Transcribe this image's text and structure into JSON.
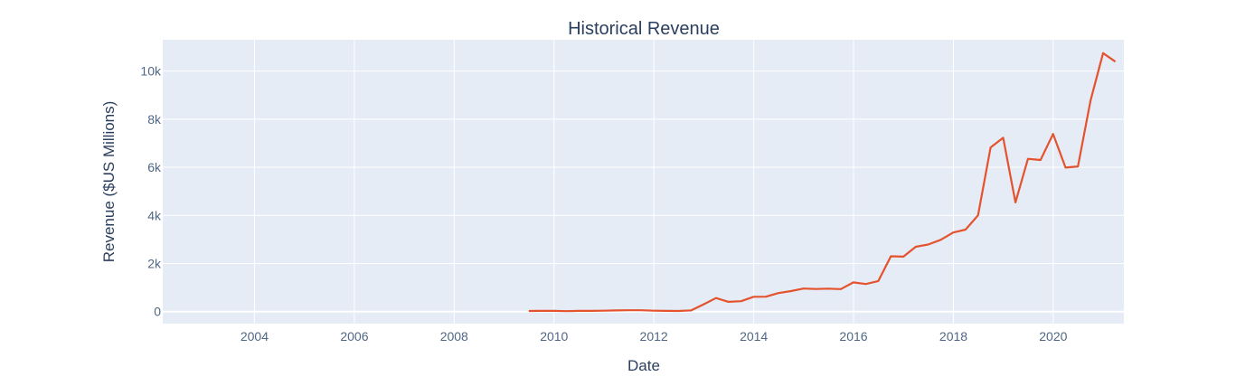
{
  "chart_data": {
    "type": "line",
    "title": "Historical Revenue",
    "xlabel": "Date",
    "ylabel": "Revenue ($US Millions)",
    "x_ticks": [
      "2004",
      "2006",
      "2008",
      "2010",
      "2012",
      "2014",
      "2016",
      "2018",
      "2020"
    ],
    "y_ticks": [
      "0",
      "2k",
      "4k",
      "6k",
      "8k",
      "10k"
    ],
    "y_tick_values": [
      0,
      2000,
      4000,
      6000,
      8000,
      10000
    ],
    "xlim": [
      "2002-03-01",
      "2021-06-01"
    ],
    "ylim": [
      -500,
      11300
    ],
    "grid": true,
    "colors": {
      "line": "#e4522e",
      "plot_bg": "#e5ecf6",
      "grid": "#ffffff"
    },
    "series": [
      {
        "x": [
          "2009-06-30",
          "2009-09-30",
          "2009-12-31",
          "2010-03-31",
          "2010-06-30",
          "2010-09-30",
          "2010-12-31",
          "2011-03-31",
          "2011-06-30",
          "2011-09-30",
          "2011-12-31",
          "2012-03-31",
          "2012-06-30",
          "2012-09-30",
          "2012-12-31",
          "2013-03-31",
          "2013-06-30",
          "2013-09-30",
          "2013-12-31",
          "2014-03-31",
          "2014-06-30",
          "2014-09-30",
          "2014-12-31",
          "2015-03-31",
          "2015-06-30",
          "2015-09-30",
          "2015-12-31",
          "2016-03-31",
          "2016-06-30",
          "2016-09-30",
          "2016-12-31",
          "2017-03-31",
          "2017-06-30",
          "2017-09-30",
          "2017-12-31",
          "2018-03-31",
          "2018-06-30",
          "2018-09-30",
          "2018-12-31",
          "2019-03-31",
          "2019-06-30",
          "2019-09-30",
          "2019-12-31",
          "2020-03-31",
          "2020-06-30",
          "2020-09-30",
          "2020-12-31",
          "2021-03-31"
        ],
        "values": [
          27,
          28,
          30,
          20,
          28,
          31,
          37,
          49,
          58,
          57,
          39,
          30,
          27,
          50,
          306,
          562,
          405,
          431,
          615,
          621,
          769,
          852,
          957,
          940,
          955,
          937,
          1214,
          1147,
          1270,
          2298,
          2285,
          2696,
          2790,
          2985,
          3288,
          3409,
          4002,
          6824,
          7226,
          4541,
          6350,
          6303,
          7384,
          5985,
          6036,
          8771,
          10744,
          10389
        ]
      }
    ]
  }
}
